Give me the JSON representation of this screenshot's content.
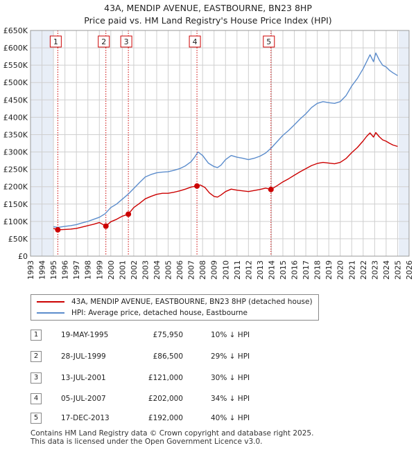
{
  "title_line1": "43A, MENDIP AVENUE, EASTBOURNE, BN23 8HP",
  "title_line2": "Price paid vs. HM Land Registry's House Price Index (HPI)",
  "colors": {
    "property": "#cc0000",
    "hpi": "#5b8ccc",
    "grid": "#cfcfcf",
    "shade": "#e8eef7"
  },
  "legend": {
    "property_label": "43A, MENDIP AVENUE, EASTBOURNE, BN23 8HP (detached house)",
    "hpi_label": "HPI: Average price, detached house, Eastbourne"
  },
  "sales": [
    {
      "num": "1",
      "date": "19-MAY-1995",
      "price": "£75,950",
      "hpi": "10% ↓ HPI"
    },
    {
      "num": "2",
      "date": "28-JUL-1999",
      "price": "£86,500",
      "hpi": "29% ↓ HPI"
    },
    {
      "num": "3",
      "date": "13-JUL-2001",
      "price": "£121,000",
      "hpi": "30% ↓ HPI"
    },
    {
      "num": "4",
      "date": "05-JUL-2007",
      "price": "£202,000",
      "hpi": "34% ↓ HPI"
    },
    {
      "num": "5",
      "date": "17-DEC-2013",
      "price": "£192,000",
      "hpi": "40% ↓ HPI"
    }
  ],
  "footer_line1": "Contains HM Land Registry data © Crown copyright and database right 2025.",
  "footer_line2": "This data is licensed under the Open Government Licence v3.0.",
  "chart_data": {
    "type": "line",
    "title": "43A, MENDIP AVENUE, EASTBOURNE, BN23 8HP — Price paid vs. HM Land Registry's House Price Index (HPI)",
    "xlabel": "",
    "ylabel": "",
    "xlim": [
      1993,
      2026
    ],
    "ylim": [
      0,
      650000
    ],
    "grid": true,
    "x_ticks": [
      1993,
      1994,
      1995,
      1996,
      1997,
      1998,
      1999,
      2000,
      2001,
      2002,
      2003,
      2004,
      2005,
      2006,
      2007,
      2008,
      2009,
      2010,
      2011,
      2012,
      2013,
      2014,
      2015,
      2016,
      2017,
      2018,
      2019,
      2020,
      2021,
      2022,
      2023,
      2024,
      2025,
      2026
    ],
    "y_ticks": [
      0,
      50000,
      100000,
      150000,
      200000,
      250000,
      300000,
      350000,
      400000,
      450000,
      500000,
      550000,
      600000,
      650000
    ],
    "y_tick_labels": [
      "£0",
      "£50K",
      "£100K",
      "£150K",
      "£200K",
      "£250K",
      "£300K",
      "£350K",
      "£400K",
      "£450K",
      "£500K",
      "£550K",
      "£600K",
      "£650K"
    ],
    "shaded_before": 1995.0,
    "shaded_after": 2025.1,
    "series": [
      {
        "name": "HPI: Average price, detached house, Eastbourne",
        "x": [
          1995.0,
          1995.4,
          1996,
          1996.5,
          1997,
          1997.5,
          1998,
          1998.5,
          1999,
          1999.5,
          2000,
          2000.5,
          2001,
          2001.5,
          2002,
          2002.5,
          2003,
          2003.5,
          2004,
          2004.5,
          2005,
          2005.5,
          2006,
          2006.5,
          2007,
          2007.3,
          2007.6,
          2008,
          2008.5,
          2009,
          2009.3,
          2009.6,
          2010,
          2010.5,
          2011,
          2011.5,
          2012,
          2012.5,
          2013,
          2013.5,
          2014,
          2014.5,
          2015,
          2015.5,
          2016,
          2016.5,
          2017,
          2017.5,
          2018,
          2018.5,
          2019,
          2019.5,
          2020,
          2020.5,
          2021,
          2021.5,
          2022,
          2022.3,
          2022.6,
          2022.9,
          2023.1,
          2023.4,
          2023.7,
          2024,
          2024.3,
          2024.6,
          2025.0
        ],
        "values": [
          85000,
          83000,
          86000,
          88000,
          91000,
          96000,
          100000,
          106000,
          112000,
          122000,
          140000,
          150000,
          164000,
          178000,
          195000,
          212000,
          228000,
          235000,
          240000,
          242000,
          243000,
          247000,
          252000,
          260000,
          272000,
          285000,
          300000,
          290000,
          268000,
          258000,
          255000,
          262000,
          278000,
          290000,
          285000,
          282000,
          278000,
          282000,
          288000,
          297000,
          312000,
          330000,
          348000,
          362000,
          378000,
          395000,
          410000,
          428000,
          440000,
          445000,
          442000,
          440000,
          445000,
          462000,
          490000,
          512000,
          540000,
          560000,
          580000,
          560000,
          585000,
          565000,
          550000,
          545000,
          535000,
          528000,
          520000
        ]
      },
      {
        "name": "43A, MENDIP AVENUE, EASTBOURNE, BN23 8HP (detached house)",
        "x": [
          1995.0,
          1995.38,
          1996,
          1996.5,
          1997,
          1997.5,
          1998,
          1998.5,
          1999,
          1999.57,
          2000,
          2000.5,
          2001,
          2001.53,
          2002,
          2002.5,
          2003,
          2003.5,
          2004,
          2004.5,
          2005,
          2005.5,
          2006,
          2006.5,
          2007,
          2007.51,
          2007.8,
          2008.2,
          2008.6,
          2009,
          2009.3,
          2009.6,
          2010,
          2010.5,
          2011,
          2011.5,
          2012,
          2012.5,
          2013,
          2013.5,
          2013.96,
          2014.5,
          2015,
          2015.5,
          2016,
          2016.5,
          2017,
          2017.5,
          2018,
          2018.5,
          2019,
          2019.5,
          2020,
          2020.5,
          2021,
          2021.5,
          2022,
          2022.3,
          2022.6,
          2022.9,
          2023.1,
          2023.4,
          2023.7,
          2024,
          2024.3,
          2024.6,
          2025.0
        ],
        "values": [
          80000,
          75950,
          77000,
          78000,
          80000,
          84000,
          88000,
          92000,
          97000,
          86500,
          99000,
          106000,
          115000,
          121000,
          140000,
          152000,
          165000,
          172000,
          178000,
          181000,
          181000,
          184000,
          188000,
          193000,
          199000,
          202000,
          205000,
          198000,
          182000,
          172000,
          170000,
          176000,
          186000,
          193000,
          190000,
          188000,
          186000,
          189000,
          192000,
          196000,
          192000,
          203000,
          214000,
          223000,
          233000,
          243000,
          252000,
          261000,
          267000,
          270000,
          268000,
          266000,
          270000,
          281000,
          298000,
          313000,
          332000,
          345000,
          355000,
          343000,
          356000,
          344000,
          335000,
          331000,
          325000,
          320000,
          316000
        ]
      }
    ],
    "sale_markers": [
      {
        "label": "1",
        "x": 1995.38,
        "y": 75950
      },
      {
        "label": "2",
        "x": 1999.57,
        "y": 86500
      },
      {
        "label": "3",
        "x": 2001.53,
        "y": 121000
      },
      {
        "label": "4",
        "x": 2007.51,
        "y": 202000
      },
      {
        "label": "5",
        "x": 2013.96,
        "y": 192000
      }
    ]
  }
}
